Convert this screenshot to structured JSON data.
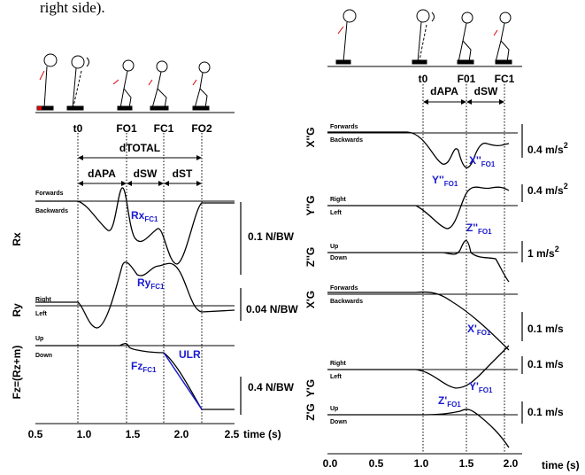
{
  "caption_fragment": "right side).",
  "left_panel": {
    "events": [
      "t0",
      "FO1",
      "FC1",
      "FO2"
    ],
    "durations": {
      "total": "dTOTAL",
      "apa": "dAPA",
      "sw": "dSW",
      "st": "dST"
    },
    "plots": [
      {
        "ylabel": "Rx",
        "top": "Forwards",
        "bottom": "Backwards",
        "annotation": {
          "main": "Rx",
          "sub": "FC1"
        },
        "scale": "0.1 N/BW"
      },
      {
        "ylabel": "Ry",
        "top": "Right",
        "bottom": "Left",
        "annotation": {
          "main": "Ry",
          "sub": "FC1"
        },
        "scale": "0.04 N/BW"
      },
      {
        "ylabel": "Fz=(Rz+m)",
        "top": "Up",
        "bottom": "Down",
        "annotation": {
          "main": "Fz",
          "sub": "FC1"
        },
        "extra": "ULR",
        "scale": "0.4 N/BW"
      }
    ],
    "x_ticks": [
      "0.5",
      "1.0",
      "1.5",
      "2.0",
      "2.5"
    ],
    "x_label": "time (s)"
  },
  "right_panel": {
    "events": [
      "t0",
      "F01",
      "FC1"
    ],
    "durations": {
      "apa": "dAPA",
      "sw": "dSW"
    },
    "plots": [
      {
        "ylabel": "X''G",
        "top": "Forwards",
        "bottom": "Backwards",
        "annotation": {
          "main": "X''",
          "sub": "FO1"
        },
        "scale": {
          "text": "0.4 m/s",
          "sup": "2"
        }
      },
      {
        "ylabel": "Y''G",
        "top": "Right",
        "bottom": "Left",
        "annotation": {
          "main": "Y''",
          "sub": "FO1"
        },
        "scale": {
          "text": "0.4 m/s",
          "sup": "2"
        }
      },
      {
        "ylabel": "Z''G",
        "top": "Up",
        "bottom": "Down",
        "annotation": {
          "main": "Z''",
          "sub": "FO1"
        },
        "scale": {
          "text": "1 m/s",
          "sup": "2"
        }
      },
      {
        "ylabel": "X'G",
        "top": "Forwards",
        "bottom": "Backwards",
        "annotation": {
          "main": "X'",
          "sub": "FO1"
        },
        "scale": {
          "text": "0.1 m/s"
        }
      },
      {
        "ylabel": "Y'G",
        "top": "Right",
        "bottom": "Left",
        "annotation": {
          "main": "Y'",
          "sub": "FO1"
        },
        "scale": {
          "text": "0.1 m/s"
        }
      },
      {
        "ylabel": "Z'G",
        "top": "Up",
        "bottom": "Down",
        "annotation": {
          "main": "Z'",
          "sub": "FO1"
        },
        "scale": {
          "text": "0.1 m/s"
        }
      }
    ],
    "x_ticks": [
      "0.0",
      "0.5",
      "1.0",
      "1.5",
      "2.0"
    ],
    "x_label": "time (s)"
  }
}
